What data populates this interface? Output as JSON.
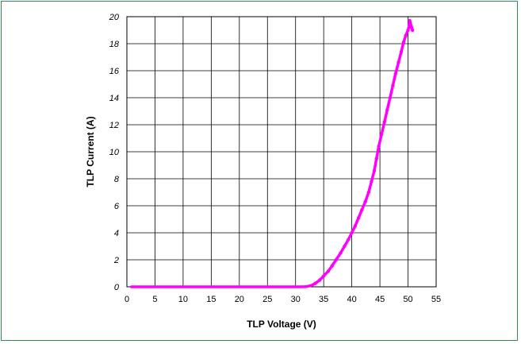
{
  "chart_data": {
    "type": "line",
    "title": "",
    "xlabel": "TLP Voltage (V)",
    "ylabel": "TLP Current (A)",
    "xlim": [
      0,
      55
    ],
    "ylim": [
      0,
      20
    ],
    "x_ticks": [
      "0",
      "5",
      "10",
      "15",
      "20",
      "25",
      "30",
      "35",
      "40",
      "45",
      "50",
      "55"
    ],
    "y_ticks": [
      "0",
      "2",
      "4",
      "6",
      "8",
      "10",
      "12",
      "14",
      "16",
      "18",
      "20"
    ],
    "grid": true,
    "legend": "none",
    "series": [
      {
        "color": "#ff00ff",
        "x": [
          0.8,
          5,
          10,
          15,
          20,
          25,
          28,
          30,
          31,
          32,
          32.8,
          33.5,
          34.3,
          35,
          35.8,
          36.5,
          37.2,
          38,
          38.7,
          39.4,
          40,
          40.6,
          41.2,
          41.8,
          42.4,
          43,
          43.5,
          44,
          44.4,
          44.8,
          45.3,
          45.8,
          46.3,
          46.8,
          47.3,
          47.8,
          48.3,
          48.8,
          49.2,
          49.6,
          50,
          50.3,
          50.6,
          50.3,
          50.8,
          50.4
        ],
        "y": [
          0,
          0,
          0,
          0,
          0,
          0,
          0,
          0,
          0,
          0.02,
          0.1,
          0.25,
          0.5,
          0.8,
          1.15,
          1.55,
          2.0,
          2.5,
          3.0,
          3.5,
          4.0,
          4.5,
          5.1,
          5.7,
          6.3,
          7.0,
          7.8,
          8.6,
          9.5,
          10.4,
          11.3,
          12.2,
          13.1,
          14.0,
          14.9,
          15.8,
          16.6,
          17.4,
          18.1,
          18.6,
          19.0,
          19.5,
          19.2,
          19.7,
          19.0,
          19.4
        ]
      }
    ]
  }
}
